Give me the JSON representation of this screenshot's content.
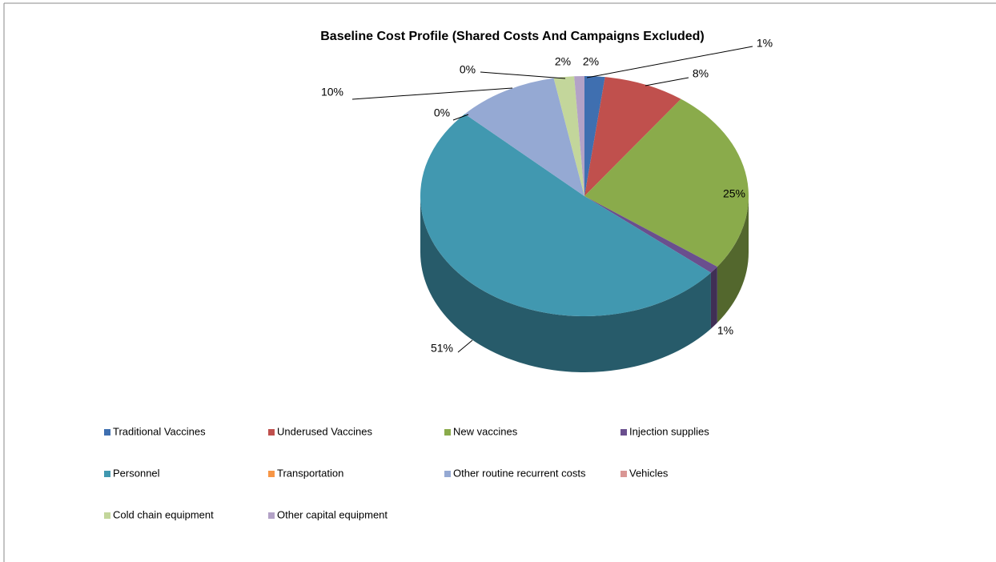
{
  "chart_data": {
    "type": "pie",
    "title": "Baseline Cost Profile (Shared Costs And Campaigns Excluded)",
    "categories": [
      "Traditional Vaccines",
      "Underused Vaccines",
      "New vaccines",
      "Injection supplies",
      "Personnel",
      "Transportation",
      "Other routine recurrent costs",
      "Vehicles",
      "Cold chain equipment",
      "Other capital equipment"
    ],
    "values": [
      2,
      8,
      25,
      1,
      51,
      0,
      10,
      0,
      2,
      1
    ],
    "value_labels": [
      "2%",
      "8%",
      "25%",
      "1%",
      "51%",
      "0%",
      "10%",
      "0%",
      "2%",
      "1%"
    ],
    "colors": [
      "#3f6fb0",
      "#c0504d",
      "#8aab4b",
      "#6a4f8e",
      "#4198b0",
      "#f79646",
      "#95a9d3",
      "#d99694",
      "#c3d69b",
      "#b3a2c7"
    ],
    "legend": "bottom"
  }
}
